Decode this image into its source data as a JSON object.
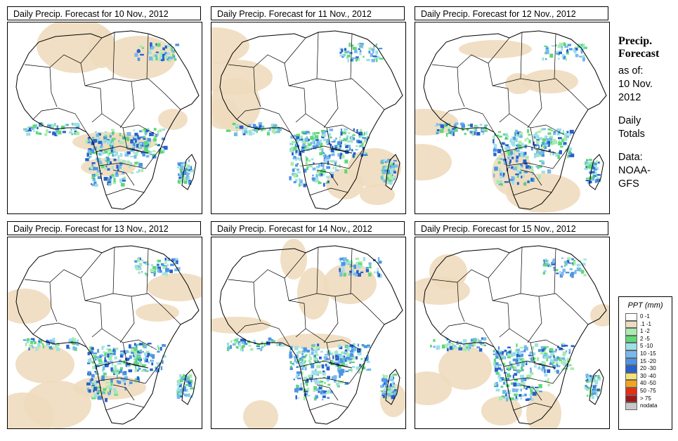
{
  "panels": [
    {
      "title": "Daily Precip. Forecast for  10 Nov., 2012",
      "seed": 11
    },
    {
      "title": "Daily Precip. Forecast for  11 Nov., 2012",
      "seed": 23
    },
    {
      "title": "Daily Precip. Forecast for  12 Nov., 2012",
      "seed": 37
    },
    {
      "title": "Daily Precip. Forecast for  13 Nov., 2012",
      "seed": 41
    },
    {
      "title": "Daily Precip. Forecast for  14 Nov., 2012",
      "seed": 53
    },
    {
      "title": "Daily Precip. Forecast for  15 Nov., 2012",
      "seed": 67
    }
  ],
  "side": {
    "heading1": "Precip.",
    "heading2": "Forecast",
    "asof": "as of:",
    "date1": "10 Nov.",
    "date2": "2012",
    "daily": "Daily",
    "totals": "Totals",
    "data": "Data:",
    "src1": "NOAA-",
    "src2": "GFS"
  },
  "legend": {
    "title": "PPT (mm)",
    "items": [
      {
        "label": "0 -1",
        "color": "#ffffff"
      },
      {
        "label": ".1 -1",
        "color": "#eedcbe"
      },
      {
        "label": "1 -2",
        "color": "#a8ecae"
      },
      {
        "label": "2 -5",
        "color": "#5ed878"
      },
      {
        "label": "5 -10",
        "color": "#9ce0e8"
      },
      {
        "label": "10 -15",
        "color": "#78b8ec"
      },
      {
        "label": "15 -20",
        "color": "#4c94e4"
      },
      {
        "label": "20 -30",
        "color": "#2860cc"
      },
      {
        "label": "30 -40",
        "color": "#f2e27a"
      },
      {
        "label": "40 -50",
        "color": "#f4a418"
      },
      {
        "label": "50 -75",
        "color": "#ea2c10"
      },
      {
        "label": "> 75",
        "color": "#a01818"
      },
      {
        "label": "nodata",
        "color": "#c8c8c8"
      }
    ]
  }
}
